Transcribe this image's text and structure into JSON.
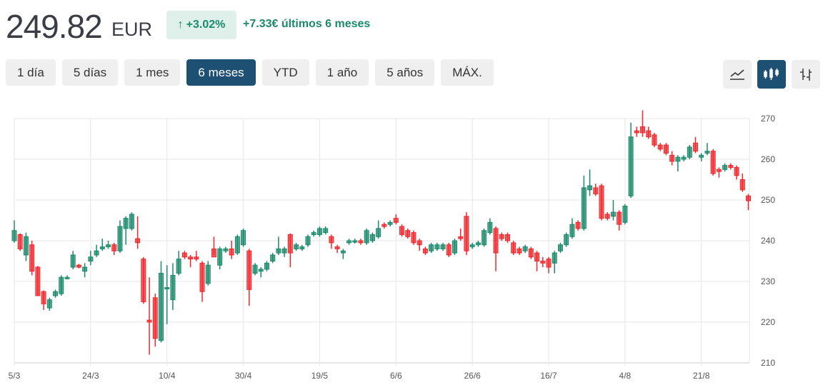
{
  "header": {
    "price": "249.82",
    "currency": "EUR",
    "change_pct": "+3.02%",
    "change_arrow": "↑",
    "change_abs": "+7.33€ últimos 6 meses",
    "accent_up": "#1b8a6b",
    "accent_down": "#f0282d"
  },
  "ranges": [
    {
      "label": "1 día",
      "active": false
    },
    {
      "label": "5 días",
      "active": false
    },
    {
      "label": "1 mes",
      "active": false
    },
    {
      "label": "6 meses",
      "active": true
    },
    {
      "label": "YTD",
      "active": false
    },
    {
      "label": "1 año",
      "active": false
    },
    {
      "label": "5 años",
      "active": false
    },
    {
      "label": "MÁX.",
      "active": false
    }
  ],
  "chart_types": [
    {
      "icon": "line-chart-icon",
      "active": false
    },
    {
      "icon": "candlestick-icon",
      "active": true
    },
    {
      "icon": "ohlc-bars-icon",
      "active": false
    }
  ],
  "chart_data": {
    "type": "candlestick",
    "ylim": [
      210,
      270
    ],
    "yticks": [
      210,
      220,
      230,
      240,
      250,
      260,
      270
    ],
    "y_axis_side": "right",
    "grid": true,
    "xticks": [
      {
        "index": 0,
        "label": "5/3"
      },
      {
        "index": 13,
        "label": "24/3"
      },
      {
        "index": 26,
        "label": "10/4"
      },
      {
        "index": 39,
        "label": "30/4"
      },
      {
        "index": 52,
        "label": "19/5"
      },
      {
        "index": 65,
        "label": "6/6"
      },
      {
        "index": 78,
        "label": "26/6"
      },
      {
        "index": 91,
        "label": "16/7"
      },
      {
        "index": 104,
        "label": "4/8"
      },
      {
        "index": 117,
        "label": "21/8"
      }
    ],
    "colors": {
      "up": "#1b8a6b",
      "down": "#f0282d"
    },
    "ohlc_fields": [
      "open",
      "high",
      "low",
      "close"
    ],
    "candles": [
      [
        240,
        245,
        239.5,
        242.5
      ],
      [
        241.5,
        241.8,
        237.5,
        238
      ],
      [
        236.5,
        242,
        235,
        241
      ],
      [
        239,
        240,
        231.5,
        232.5
      ],
      [
        233.5,
        233.8,
        226.5,
        226.5
      ],
      [
        227.5,
        227.8,
        223,
        224.5
      ],
      [
        223.5,
        226,
        222.8,
        225.5
      ],
      [
        226.5,
        228,
        226,
        227.5
      ],
      [
        227,
        231.5,
        226.5,
        231
      ],
      [
        230.8,
        231.5,
        230.5,
        231
      ],
      [
        233.5,
        237.5,
        233,
        236.5
      ],
      [
        234,
        234.3,
        233.2,
        233.5
      ],
      [
        232.5,
        234.5,
        231,
        233.5
      ],
      [
        235,
        237.5,
        234,
        236
      ],
      [
        236.5,
        239,
        236,
        237.5
      ],
      [
        238,
        240.5,
        237.5,
        238.5
      ],
      [
        238.5,
        240,
        238,
        239
      ],
      [
        239,
        239.5,
        236.5,
        237.5
      ],
      [
        237.5,
        245,
        237,
        243.5
      ],
      [
        243,
        246,
        239,
        245.5
      ],
      [
        243,
        247,
        242.5,
        246.5
      ],
      [
        240.5,
        246,
        238,
        239.5
      ],
      [
        235.5,
        236,
        224.5,
        225
      ],
      [
        220.5,
        231,
        212,
        220
      ],
      [
        226,
        227,
        214,
        216
      ],
      [
        215.5,
        235,
        215,
        232
      ],
      [
        228.5,
        234,
        219.5,
        228.5
      ],
      [
        225.5,
        234.5,
        223,
        231.5
      ],
      [
        232,
        237.5,
        231.5,
        235.5
      ],
      [
        237,
        237.5,
        235.5,
        236
      ],
      [
        236,
        236.5,
        233.5,
        235.5
      ],
      [
        236,
        237.5,
        235,
        235.5
      ],
      [
        234.5,
        235,
        225,
        227.5
      ],
      [
        229.5,
        235,
        229,
        234
      ],
      [
        238,
        241,
        236.5,
        236
      ],
      [
        234,
        238.5,
        233,
        238
      ],
      [
        237.5,
        238.5,
        237,
        238
      ],
      [
        238,
        240,
        235.5,
        236.5
      ],
      [
        237,
        241.5,
        236.5,
        241
      ],
      [
        239,
        243,
        238.5,
        242.5
      ],
      [
        237.5,
        238,
        224,
        228
      ],
      [
        232,
        234.5,
        231.5,
        234
      ],
      [
        232.5,
        233.5,
        231,
        233
      ],
      [
        233,
        235,
        232.5,
        234.5
      ],
      [
        235,
        237,
        234.5,
        236.5
      ],
      [
        237,
        241,
        236.5,
        238
      ],
      [
        237,
        238.5,
        236,
        238
      ],
      [
        241.5,
        241.8,
        233.5,
        237
      ],
      [
        238,
        239.5,
        237.5,
        239
      ],
      [
        238,
        239,
        237.5,
        238.5
      ],
      [
        239,
        241.5,
        238.5,
        241
      ],
      [
        241.5,
        242.5,
        241,
        242
      ],
      [
        241.5,
        243.5,
        241,
        243
      ],
      [
        242,
        243.5,
        241.5,
        243
      ],
      [
        241,
        241.5,
        238,
        239.5
      ],
      [
        238.5,
        239,
        237,
        238
      ],
      [
        237,
        238,
        235.5,
        237.5
      ],
      [
        239.5,
        240.5,
        239,
        240
      ],
      [
        239.8,
        240.5,
        239.3,
        240
      ],
      [
        240,
        240.5,
        239,
        239.5
      ],
      [
        239.5,
        243,
        239,
        242.5
      ],
      [
        240,
        242,
        239.5,
        241.5
      ],
      [
        241,
        245,
        240.5,
        243
      ],
      [
        244,
        244.5,
        243,
        243.5
      ],
      [
        244,
        245,
        243.5,
        244.5
      ],
      [
        245.5,
        246.5,
        244,
        244.5
      ],
      [
        243.5,
        244,
        241,
        241.5
      ],
      [
        242.5,
        243,
        240.5,
        241
      ],
      [
        242,
        242.5,
        239,
        239.5
      ],
      [
        240,
        240.5,
        237.5,
        239
      ],
      [
        238,
        238.5,
        236.5,
        237
      ],
      [
        237.5,
        239.5,
        237,
        239
      ],
      [
        238,
        239.5,
        237.5,
        239
      ],
      [
        238,
        239.5,
        237.5,
        239
      ],
      [
        239,
        239.5,
        236,
        236.5
      ],
      [
        237,
        240.5,
        236.5,
        240
      ],
      [
        241,
        243,
        240,
        240.5
      ],
      [
        246,
        247,
        236.5,
        237.5
      ],
      [
        238.5,
        239.5,
        238,
        239
      ],
      [
        239,
        240,
        238.5,
        239.5
      ],
      [
        239,
        243,
        238.5,
        242.5
      ],
      [
        242,
        245.5,
        241.5,
        244.5
      ],
      [
        243,
        243.5,
        232.5,
        237
      ],
      [
        241.5,
        242,
        240,
        240.5
      ],
      [
        241.5,
        242,
        239.5,
        240
      ],
      [
        239.5,
        240,
        236.5,
        237
      ],
      [
        238,
        238.5,
        236.5,
        237
      ],
      [
        237.5,
        239,
        237,
        238.5
      ],
      [
        238,
        238.5,
        235.5,
        236
      ],
      [
        237,
        237.5,
        232.5,
        235
      ],
      [
        235,
        236,
        233.5,
        234.5
      ],
      [
        235.5,
        236,
        232,
        233.5
      ],
      [
        234.5,
        237.5,
        232,
        237
      ],
      [
        237.5,
        239.5,
        237,
        239
      ],
      [
        239,
        242,
        238.5,
        241.5
      ],
      [
        241,
        245.5,
        240.5,
        244
      ],
      [
        244.5,
        245,
        242.5,
        243
      ],
      [
        243,
        256,
        242.5,
        253
      ],
      [
        252.5,
        257.5,
        251,
        253.5
      ],
      [
        253,
        254,
        251,
        251.5
      ],
      [
        253.5,
        254,
        245,
        245.5
      ],
      [
        246.5,
        247,
        245,
        245.5
      ],
      [
        246,
        250,
        245,
        247
      ],
      [
        247,
        247.5,
        242.5,
        244
      ],
      [
        244.5,
        249,
        244,
        248.5
      ],
      [
        251,
        269,
        250.5,
        265.5
      ],
      [
        267,
        268,
        265.5,
        266.5
      ],
      [
        268,
        272,
        265.5,
        266.5
      ],
      [
        267,
        268,
        265,
        265.5
      ],
      [
        266,
        266.5,
        263,
        263.5
      ],
      [
        263.5,
        264,
        262,
        262.5
      ],
      [
        263.5,
        264,
        261,
        261.5
      ],
      [
        261,
        262,
        258.5,
        259.5
      ],
      [
        259.5,
        261,
        257,
        260.5
      ],
      [
        260,
        261,
        259.5,
        260.5
      ],
      [
        260.5,
        263.5,
        260,
        263
      ],
      [
        264,
        265.5,
        261.5,
        262
      ],
      [
        260.5,
        261.5,
        259.5,
        261
      ],
      [
        261.5,
        264,
        261,
        262
      ],
      [
        262,
        262.5,
        256,
        256.5
      ],
      [
        257.5,
        258,
        255.5,
        257
      ],
      [
        257.5,
        259,
        257,
        258.5
      ],
      [
        258.5,
        259,
        257.5,
        258
      ],
      [
        258,
        258.5,
        255,
        256
      ],
      [
        255,
        256.5,
        252,
        252.5
      ],
      [
        251,
        251.5,
        247.5,
        249.82
      ]
    ]
  }
}
